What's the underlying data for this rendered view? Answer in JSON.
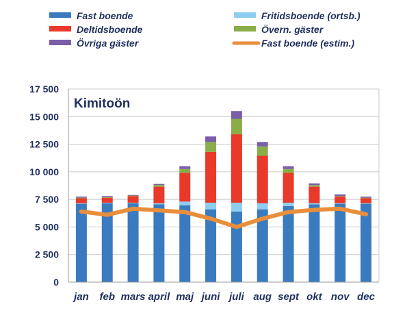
{
  "chart_data": {
    "type": "bar",
    "stacked": true,
    "title": "Kimitoön",
    "categories": [
      "jan",
      "feb",
      "mars",
      "april",
      "maj",
      "juni",
      "juli",
      "aug",
      "sept",
      "okt",
      "nov",
      "dec"
    ],
    "ylim": [
      0,
      17500
    ],
    "yticks": [
      "0",
      "2 500",
      "5 000",
      "7 500",
      "10 000",
      "12 500",
      "15 000",
      "17 500"
    ],
    "ytick_values": [
      0,
      2500,
      5000,
      7500,
      10000,
      12500,
      15000,
      17500
    ],
    "grid": true,
    "legend_position": "top",
    "series": [
      {
        "name": "Fast boende",
        "color": "#3a7bbf",
        "values": [
          7100,
          7150,
          7150,
          7050,
          6950,
          6600,
          6400,
          6600,
          6900,
          7050,
          7100,
          7100
        ]
      },
      {
        "name": "Fritidsboende (ortsb.)",
        "color": "#8ecdf2",
        "values": [
          50,
          50,
          50,
          100,
          350,
          600,
          800,
          550,
          300,
          100,
          50,
          50
        ]
      },
      {
        "name": "Deltidsboende",
        "color": "#e8392a",
        "values": [
          450,
          450,
          600,
          1500,
          2600,
          4600,
          6200,
          4300,
          2700,
          1500,
          600,
          450
        ]
      },
      {
        "name": "Övern. gäster",
        "color": "#8aad4a",
        "values": [
          50,
          50,
          50,
          150,
          350,
          900,
          1400,
          850,
          350,
          150,
          50,
          50
        ]
      },
      {
        "name": "Övriga gäster",
        "color": "#7a5ea8",
        "values": [
          100,
          100,
          50,
          100,
          250,
          500,
          700,
          400,
          250,
          150,
          150,
          100
        ]
      },
      {
        "name": "Fast boende (estim.)",
        "type": "line",
        "color": "#e98f3c",
        "values": [
          6400,
          6100,
          6650,
          6500,
          6350,
          5750,
          5000,
          5750,
          6350,
          6550,
          6650,
          6150
        ]
      }
    ]
  }
}
